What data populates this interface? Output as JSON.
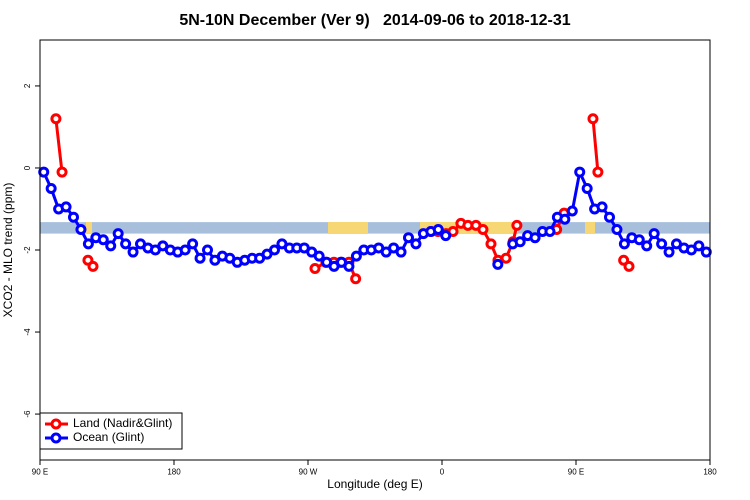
{
  "chart_data": {
    "type": "line",
    "title": "5N-10N December (Ver 9)   2014-09-06 to 2018-12-31",
    "x_label": "Longitude (deg E)",
    "y_label": "XCO2 - MLO trend (ppm)",
    "xlim": [
      90,
      540
    ],
    "ylim": [
      -7.12,
      3.12
    ],
    "xticks": [
      {
        "value": 90,
        "label": "90 E"
      },
      180,
      {
        "value": 270,
        "label": "90 W"
      },
      {
        "value": 360,
        "label": "0"
      },
      {
        "value": 450,
        "label": "90 E"
      },
      {
        "value": 540,
        "label": "180"
      }
    ],
    "yticks": [
      -6,
      -4,
      -2,
      0,
      2
    ],
    "band": {
      "ylim": [
        -1.6,
        -1.32
      ],
      "color": "#a8bfdc"
    },
    "legend": "bottom-left",
    "series": [
      {
        "name": "Land (Nadir&Glint)",
        "color": "#ff0000",
        "x": [
          100.7,
          104.8,
          113,
          122.2,
          125.6,
          200,
          274.7,
          282,
          287.4,
          292,
          297.5,
          302,
          330,
          352.6,
          357.3,
          362.7,
          367.4,
          372.7,
          377.4,
          382.8,
          387.5,
          392.9,
          397.6,
          403,
          407.7,
          410.3,
          430,
          437,
          442,
          450,
          461.4,
          464.7,
          475,
          482,
          485.6
        ],
        "values": [
          1.2,
          -0.1,
          null,
          -2.25,
          -2.4,
          null,
          -2.45,
          -2.3,
          -2.3,
          -2.3,
          -2.3,
          -2.7,
          null,
          -1.55,
          -1.55,
          -1.6,
          -1.55,
          -1.35,
          -1.4,
          -1.4,
          -1.5,
          -1.85,
          -2.25,
          -2.2,
          -1.8,
          -1.4,
          null,
          -1.5,
          -1.1,
          null,
          1.2,
          -0.1,
          null,
          -2.25,
          -2.4
        ]
      },
      {
        "name": "Ocean (Glint)",
        "color": "#0000ff",
        "x": [
          92.5,
          97.5,
          102.5,
          107.5,
          112.5,
          117.5,
          122.5,
          127.5,
          132.5,
          137.5,
          142.5,
          147.5,
          152.5,
          157.5,
          162.5,
          167.5,
          172.5,
          177.5,
          182.5,
          187.5,
          192.5,
          197.5,
          202.5,
          207.5,
          212.5,
          217.5,
          222.5,
          227.5,
          232.5,
          237.5,
          242.5,
          247.5,
          252.5,
          257.5,
          262.5,
          267.5,
          272.5,
          277.5,
          282.5,
          287.5,
          292.5,
          297.5,
          302.5,
          307.5,
          312.5,
          317.5,
          322.5,
          327.5,
          332.5,
          337.5,
          342.5,
          347.5,
          352.5,
          357.5,
          362.5,
          367.5,
          372.5,
          377.5,
          382.5,
          387.5,
          392.5,
          397.5,
          402.5,
          407.5,
          412.5,
          417.5,
          422.5,
          427.5,
          432.5,
          437.5,
          442.5,
          447.5,
          452.5,
          457.5,
          462.5,
          467.5,
          472.5,
          477.5,
          482.5,
          487.5,
          492.5,
          497.5,
          502.5,
          507.5,
          512.5,
          517.5,
          522.5,
          527.5,
          532.5,
          537.5
        ],
        "values": [
          -0.1,
          -0.5,
          -1.0,
          -0.95,
          -1.2,
          -1.5,
          -1.85,
          -1.7,
          -1.75,
          -1.9,
          -1.6,
          -1.85,
          -2.05,
          -1.85,
          -1.95,
          -2.0,
          -1.9,
          -2.0,
          -2.05,
          -2.0,
          -1.85,
          -2.2,
          -2.0,
          -2.25,
          -2.15,
          -2.2,
          -2.3,
          -2.25,
          -2.2,
          -2.2,
          -2.1,
          -2.0,
          -1.85,
          -1.95,
          -1.95,
          -1.95,
          -2.05,
          -2.15,
          -2.3,
          -2.4,
          -2.3,
          -2.4,
          -2.15,
          -2.0,
          -2.0,
          -1.95,
          -2.05,
          -1.95,
          -2.05,
          -1.7,
          -1.85,
          -1.6,
          -1.55,
          -1.5,
          -1.65,
          null,
          null,
          null,
          null,
          null,
          null,
          -2.35,
          null,
          -1.85,
          -1.8,
          -1.65,
          -1.7,
          -1.55,
          -1.55,
          -1.2,
          -1.25,
          -1.05,
          -0.1,
          -0.5,
          -1.0,
          -0.95,
          -1.2,
          -1.5,
          -1.85,
          -1.7,
          -1.75,
          -1.9,
          -1.6,
          -1.85,
          -2.05,
          -1.85,
          -1.95,
          -2.0,
          -1.9,
          -2.05
        ]
      }
    ]
  }
}
